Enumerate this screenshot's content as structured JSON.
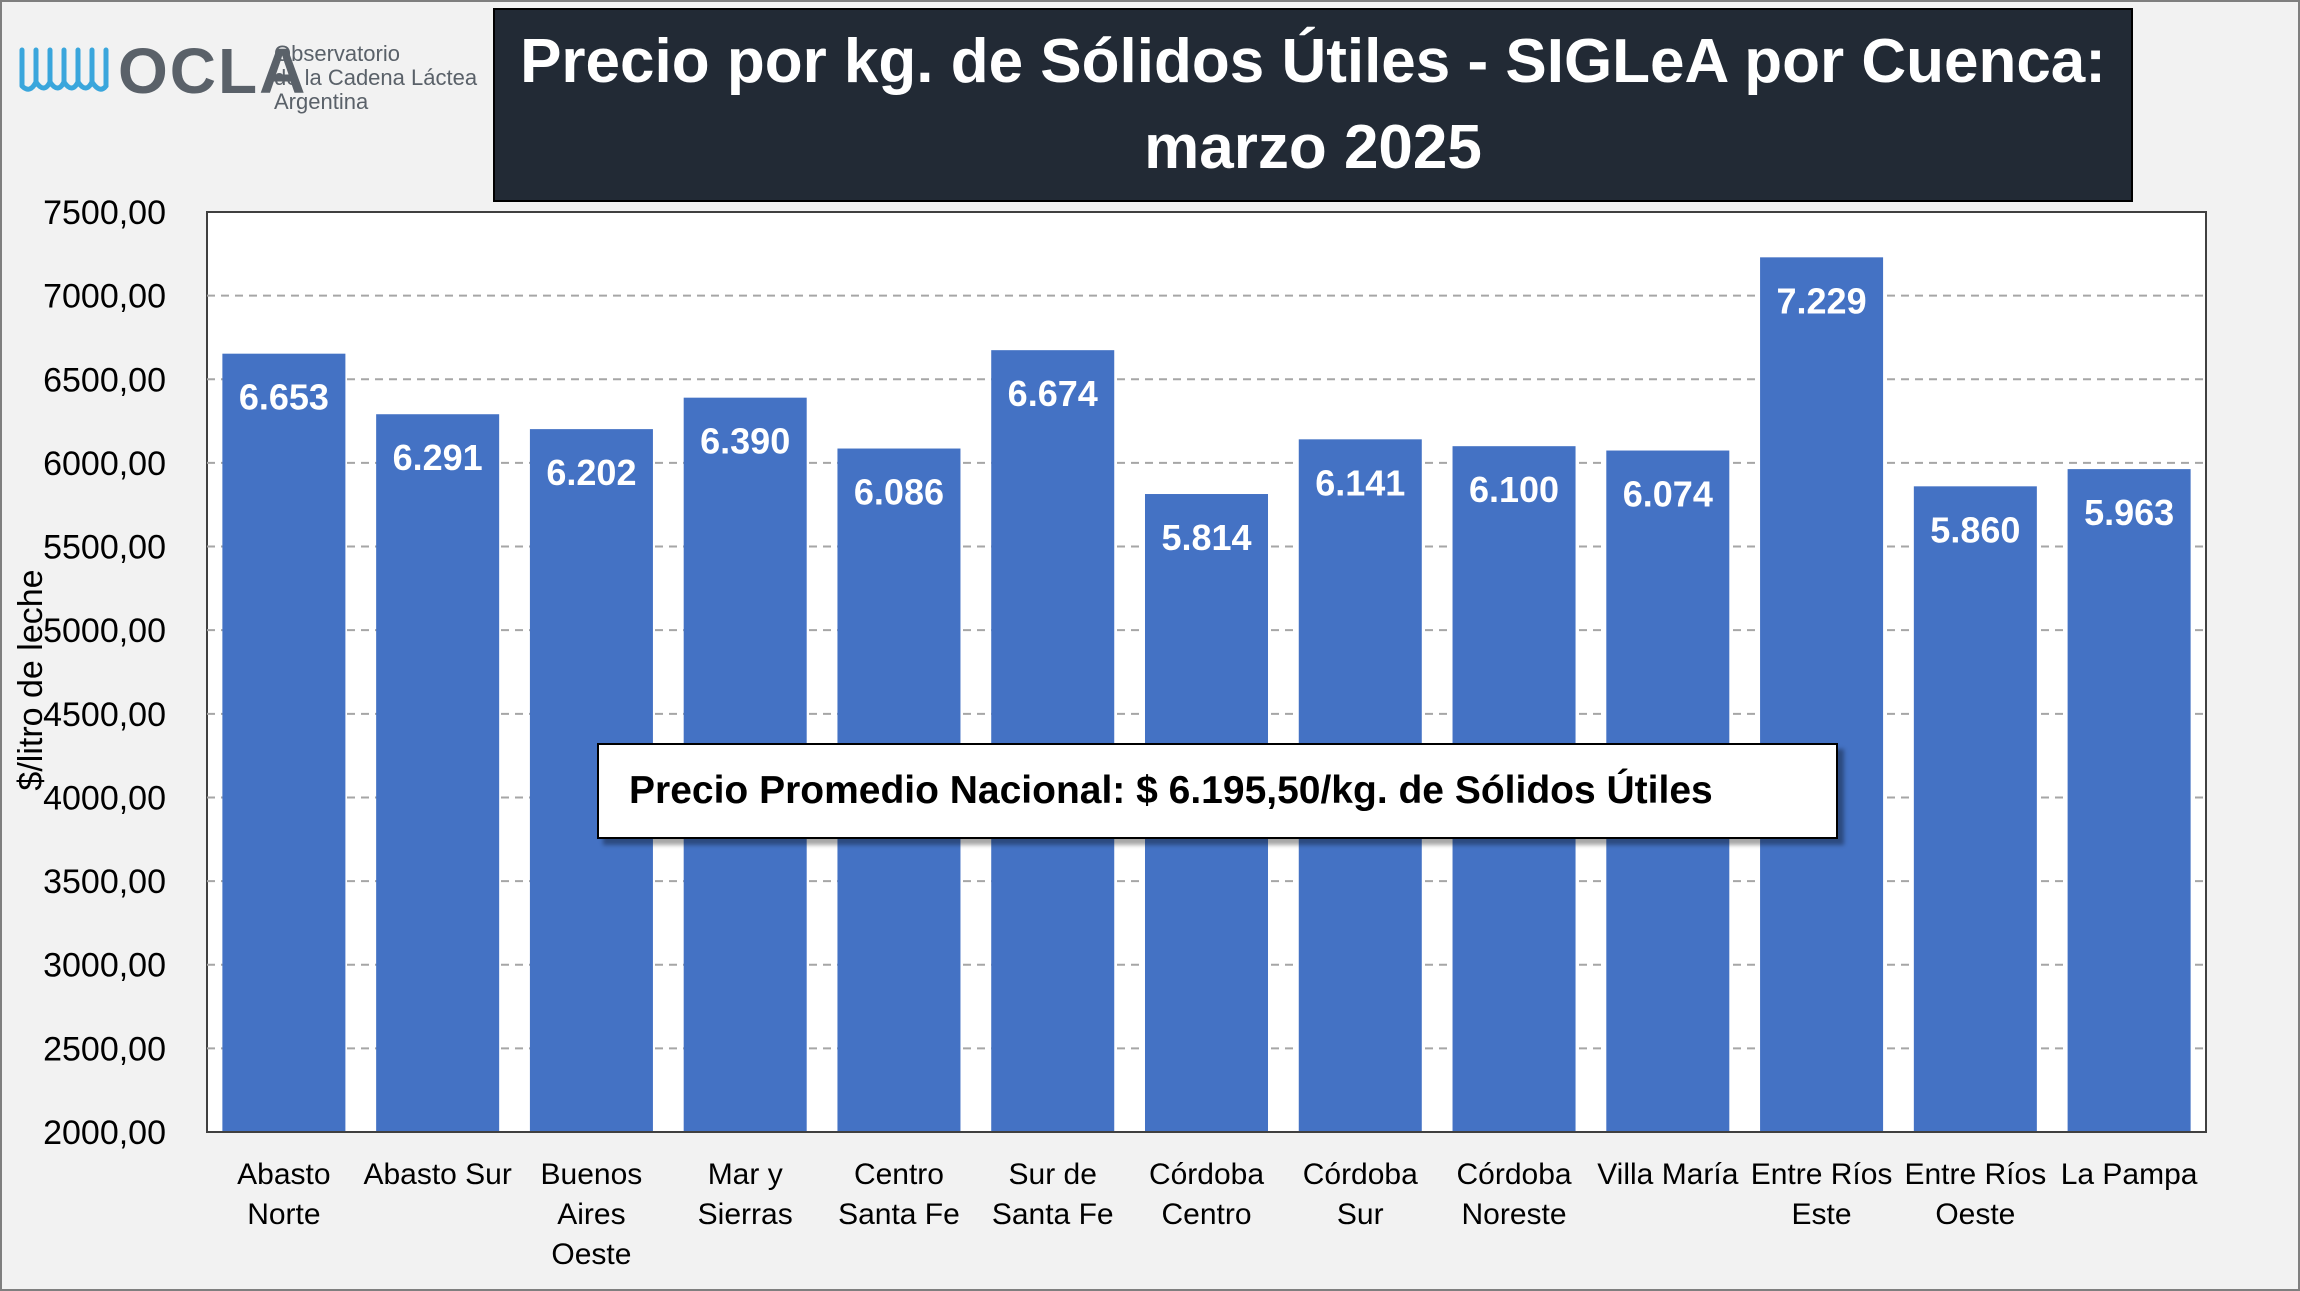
{
  "logo": {
    "brand": "OCLA",
    "line1": "Observatorio",
    "line2": "de la Cadena Láctea",
    "line3": "Argentina"
  },
  "title_line1": "Precio por kg. de Sólidos Útiles - SIGLeA por Cuenca:",
  "title_line2": "marzo 2025",
  "average_note": "Precio Promedio Nacional: $ 6.195,50/kg. de Sólidos Útiles",
  "colors": {
    "bar": "#4472c4",
    "title_bg": "#222a35",
    "grid": "#a6a6a6"
  },
  "chart_data": {
    "type": "bar",
    "title": "Precio por kg. de Sólidos Útiles - SIGLeA por Cuenca: marzo 2025",
    "ylabel": "$/litro de leche",
    "xlabel": "",
    "ylim": [
      2000,
      7500
    ],
    "yticks": [
      "2000,00",
      "2500,00",
      "3000,00",
      "3500,00",
      "4000,00",
      "4500,00",
      "5000,00",
      "5500,00",
      "6000,00",
      "6500,00",
      "7000,00",
      "7500,00"
    ],
    "grid": true,
    "categories": [
      [
        "Abasto",
        "Norte"
      ],
      [
        "Abasto Sur"
      ],
      [
        "Buenos",
        "Aires",
        "Oeste"
      ],
      [
        "Mar y",
        "Sierras"
      ],
      [
        "Centro",
        "Santa Fe"
      ],
      [
        "Sur de",
        "Santa Fe"
      ],
      [
        "Córdoba",
        "Centro"
      ],
      [
        "Córdoba",
        "Sur"
      ],
      [
        "Córdoba",
        "Noreste"
      ],
      [
        "Villa María"
      ],
      [
        "Entre Ríos",
        "Este"
      ],
      [
        "Entre Ríos",
        "Oeste"
      ],
      [
        "La Pampa"
      ]
    ],
    "values": [
      6653,
      6291,
      6202,
      6390,
      6086,
      6674,
      5814,
      6141,
      6100,
      6074,
      7229,
      5860,
      5963
    ],
    "value_labels": [
      "6.653",
      "6.291",
      "6.202",
      "6.390",
      "6.086",
      "6.674",
      "5.814",
      "6.141",
      "6.100",
      "6.074",
      "7.229",
      "5.860",
      "5.963"
    ]
  }
}
